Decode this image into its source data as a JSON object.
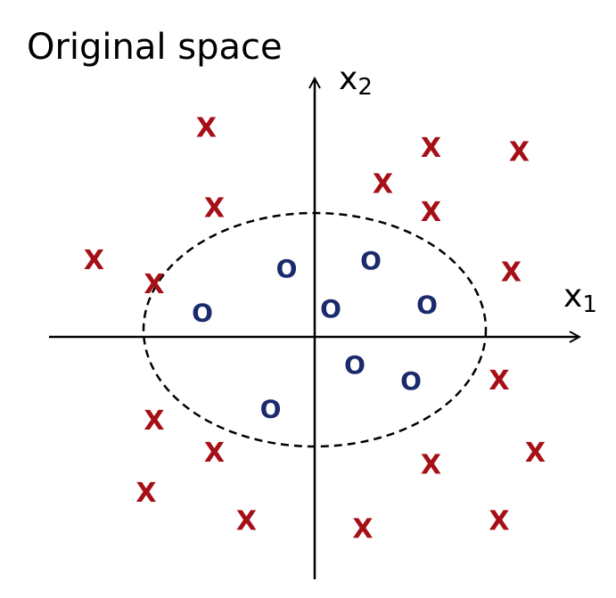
{
  "title": "Original space",
  "axes": {
    "x1": {
      "name": "x",
      "sub": "1"
    },
    "x2": {
      "name": "x",
      "sub": "2"
    }
  },
  "colors": {
    "x_class": "#a50f15",
    "o_class": "#1a2a6c",
    "axis": "#000000",
    "boundary": "#000000"
  },
  "points": {
    "x_symbol": "X",
    "o_symbol": "O",
    "x_class": [
      [
        -2.7,
        5.2
      ],
      [
        2.9,
        4.7
      ],
      [
        5.1,
        4.6
      ],
      [
        1.7,
        3.8
      ],
      [
        -2.5,
        3.2
      ],
      [
        2.9,
        3.1
      ],
      [
        -5.5,
        1.9
      ],
      [
        -4.0,
        1.3
      ],
      [
        4.9,
        1.6
      ],
      [
        4.6,
        -1.1
      ],
      [
        -4.0,
        -2.1
      ],
      [
        5.5,
        -2.9
      ],
      [
        -2.5,
        -2.9
      ],
      [
        2.9,
        -3.2
      ],
      [
        -4.2,
        -3.9
      ],
      [
        -1.7,
        -4.6
      ],
      [
        1.2,
        -4.8
      ],
      [
        4.6,
        -4.6
      ]
    ],
    "o_class": [
      [
        -0.7,
        1.7
      ],
      [
        1.4,
        1.9
      ],
      [
        -2.8,
        0.6
      ],
      [
        0.4,
        0.7
      ],
      [
        2.8,
        0.8
      ],
      [
        1.0,
        -0.7
      ],
      [
        2.4,
        -1.1
      ],
      [
        -1.1,
        -1.8
      ]
    ]
  }
}
